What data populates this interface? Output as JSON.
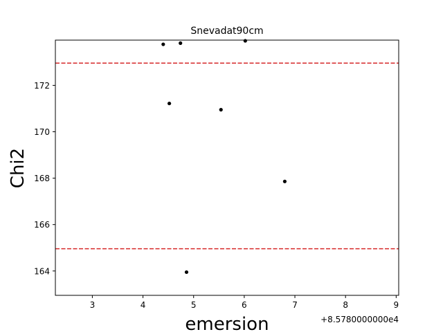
{
  "chart_data": {
    "type": "scatter",
    "title": "Snevadat90cm",
    "xlabel": "emersion",
    "ylabel": "Chi2",
    "x_offset_label": "+8.5780000000e4",
    "xlim": [
      2.27,
      9.05
    ],
    "ylim": [
      162.95,
      173.95
    ],
    "x_ticks": [
      3,
      4,
      5,
      6,
      7,
      8,
      9
    ],
    "x_tick_labels": [
      "3",
      "4",
      "5",
      "6",
      "7",
      "8",
      "9"
    ],
    "y_ticks": [
      164,
      166,
      168,
      170,
      172
    ],
    "y_tick_labels": [
      "164",
      "166",
      "168",
      "170",
      "172"
    ],
    "points": [
      {
        "x": 4.4,
        "y": 173.77
      },
      {
        "x": 4.74,
        "y": 173.82
      },
      {
        "x": 6.02,
        "y": 173.92
      },
      {
        "x": 4.52,
        "y": 171.22
      },
      {
        "x": 5.54,
        "y": 170.95
      },
      {
        "x": 6.8,
        "y": 167.86
      },
      {
        "x": 4.86,
        "y": 163.95
      }
    ],
    "hlines": [
      {
        "y": 172.96,
        "color": "#d62728",
        "style": "dashed"
      },
      {
        "y": 164.96,
        "color": "#d62728",
        "style": "dashed"
      }
    ],
    "point_color": "#000000",
    "grid": false,
    "legend": "none"
  }
}
